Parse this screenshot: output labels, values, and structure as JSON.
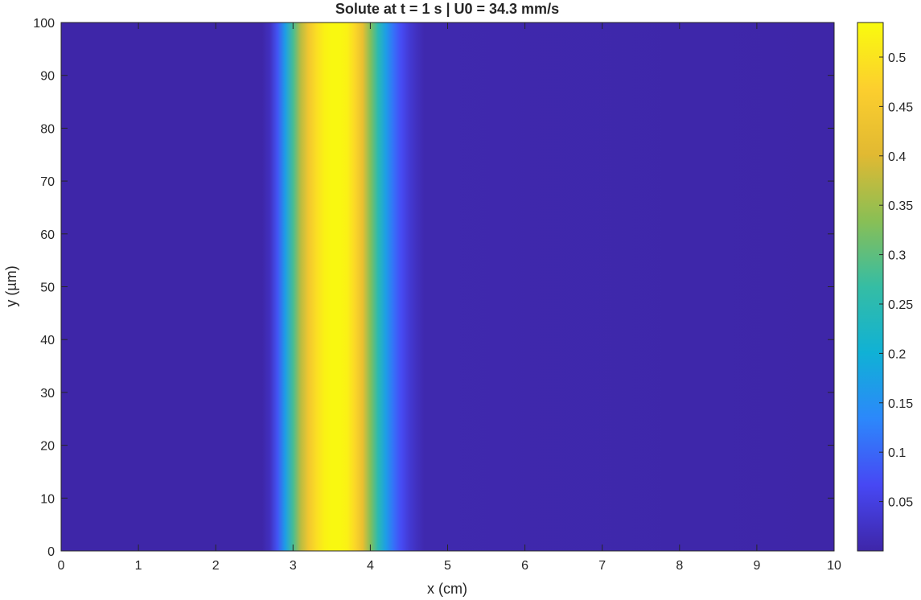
{
  "chart_data": {
    "type": "heatmap",
    "title": "Solute at t = 1 s | U0 = 34.3 mm/s",
    "xlabel": "x (cm)",
    "ylabel": "y (µm)",
    "xlim": [
      0,
      10
    ],
    "ylim": [
      0,
      100
    ],
    "x_ticks": [
      0,
      1,
      2,
      3,
      4,
      5,
      6,
      7,
      8,
      9,
      10
    ],
    "y_ticks": [
      0,
      10,
      20,
      30,
      40,
      50,
      60,
      70,
      80,
      90,
      100
    ],
    "colorbar": {
      "colormap": "parula",
      "clim": [
        0,
        0.535
      ],
      "ticks": [
        0.05,
        0.1,
        0.15,
        0.2,
        0.25,
        0.3,
        0.35,
        0.4,
        0.45,
        0.5
      ],
      "tick_labels": [
        "0.05",
        "0.1",
        "0.15",
        "0.2",
        "0.25",
        "0.3",
        "0.35",
        "0.4",
        "0.45",
        "0.5"
      ]
    },
    "field": {
      "description_of_variation": "concentration depends on x only (uniform in y)",
      "x": [
        0,
        2.6,
        2.7,
        2.8,
        2.9,
        3.0,
        3.1,
        3.2,
        3.3,
        3.4,
        3.5,
        3.6,
        3.7,
        3.8,
        3.9,
        4.0,
        4.1,
        4.2,
        4.3,
        4.4,
        4.5,
        4.6,
        4.7,
        10
      ],
      "c": [
        0.0,
        0.0,
        0.02,
        0.08,
        0.17,
        0.28,
        0.37,
        0.44,
        0.49,
        0.52,
        0.53,
        0.53,
        0.52,
        0.48,
        0.42,
        0.33,
        0.25,
        0.17,
        0.11,
        0.07,
        0.04,
        0.02,
        0.005,
        0.0
      ]
    }
  }
}
